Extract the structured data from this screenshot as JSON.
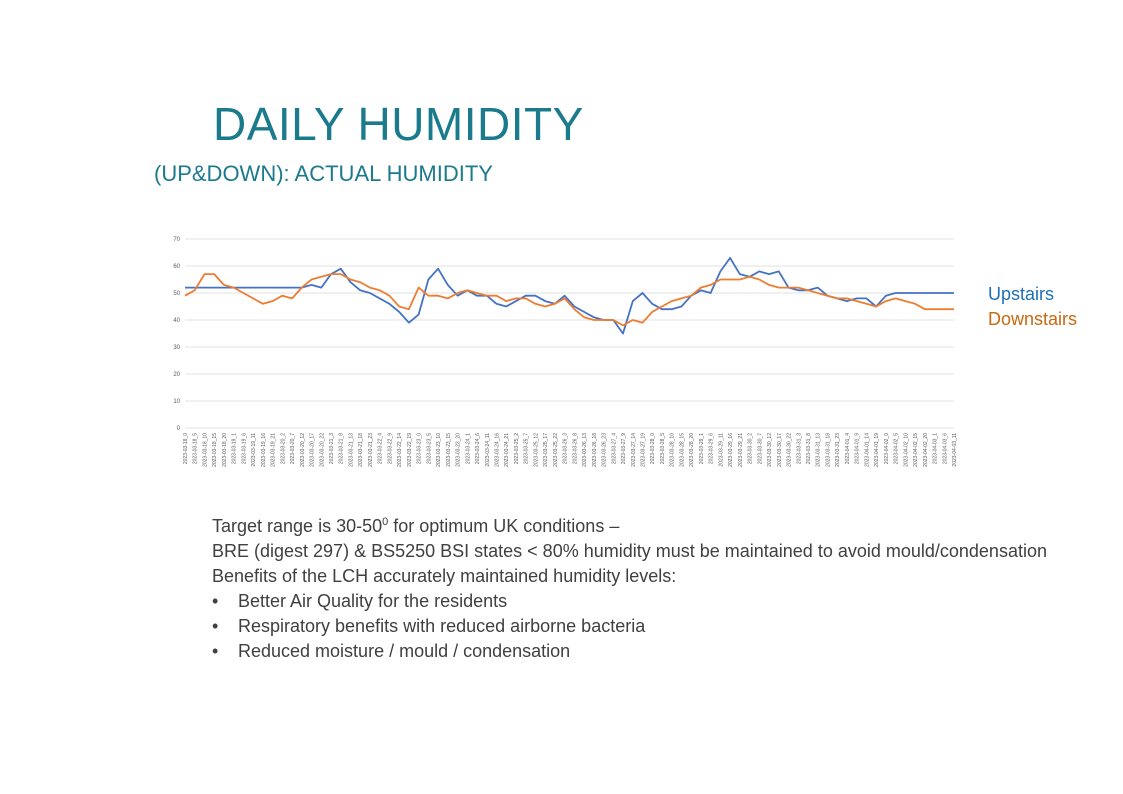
{
  "slide": {
    "title": "DAILY HUMIDITY",
    "subtitle": "(UP&DOWN): ACTUAL HUMIDITY"
  },
  "notes": {
    "line1_prefix": "Target range is 30-50",
    "line1_sup": "0",
    "line1_suffix": " for optimum UK conditions –",
    "line2": "BRE (digest 297) & BS5250 BSI states < 80% humidity must be maintained to avoid mould/condensation",
    "line3": "Benefits of the LCH accurately maintained humidity levels:",
    "bullet_symbol": "•",
    "bullets": [
      "Better Air Quality for the residents",
      "Respiratory benefits with reduced airborne bacteria",
      "Reduced moisture / mould / condensation"
    ]
  },
  "chart_data": {
    "type": "line",
    "title": "",
    "xlabel": "",
    "ylabel": "",
    "ylim": [
      0,
      70
    ],
    "yticks": [
      0,
      10,
      20,
      30,
      40,
      50,
      60,
      70
    ],
    "grid": true,
    "legend_position": "right",
    "categories": [
      "2023-03-18_0",
      "2023-03-18_5",
      "2023-03-18_10",
      "2023-03-18_15",
      "2023-03-18_20",
      "2023-03-19_1",
      "2023-03-19_6",
      "2023-03-19_11",
      "2023-03-19_16",
      "2023-03-19_21",
      "2023-03-20_2",
      "2023-03-20_7",
      "2023-03-20_12",
      "2023-03-20_17",
      "2023-03-20_22",
      "2023-03-21_3",
      "2023-03-21_8",
      "2023-03-21_13",
      "2023-03-21_18",
      "2023-03-21_23",
      "2023-03-22_4",
      "2023-03-22_9",
      "2023-03-22_14",
      "2023-03-22_19",
      "2023-03-23_0",
      "2023-03-23_5",
      "2023-03-23_10",
      "2023-03-23_15",
      "2023-03-23_20",
      "2023-03-24_1",
      "2023-03-24_6",
      "2023-03-24_11",
      "2023-03-24_16",
      "2023-03-24_21",
      "2023-03-25_2",
      "2023-03-25_7",
      "2023-03-25_12",
      "2023-03-25_17",
      "2023-03-25_22",
      "2023-03-26_3",
      "2023-03-26_8",
      "2023-03-26_13",
      "2023-03-26_18",
      "2023-03-26_23",
      "2023-03-27_4",
      "2023-03-27_9",
      "2023-03-27_14",
      "2023-03-27_19",
      "2023-03-28_0",
      "2023-03-28_5",
      "2023-03-28_10",
      "2023-03-28_15",
      "2023-03-28_20",
      "2023-03-29_1",
      "2023-03-29_6",
      "2023-03-29_11",
      "2023-03-29_16",
      "2023-03-29_21",
      "2023-03-30_2",
      "2023-03-30_7",
      "2023-03-30_12",
      "2023-03-30_17",
      "2023-03-30_22",
      "2023-03-31_3",
      "2023-03-31_8",
      "2023-03-31_13",
      "2023-03-31_18",
      "2023-03-31_23",
      "2023-04-01_4",
      "2023-04-01_9",
      "2023-04-01_14",
      "2023-04-01_19",
      "2023-04-02_0",
      "2023-04-02_5",
      "2023-04-02_10",
      "2023-04-02_15",
      "2023-04-02_20",
      "2023-04-03_1",
      "2023-04-03_6",
      "2023-04-03_11"
    ],
    "series": [
      {
        "name": "Upstairs",
        "color": "#4472c4",
        "values": [
          52,
          52,
          52,
          52,
          52,
          52,
          52,
          52,
          52,
          52,
          52,
          52,
          52,
          53,
          52,
          57,
          59,
          54,
          51,
          50,
          48,
          46,
          43,
          39,
          42,
          55,
          59,
          53,
          49,
          51,
          49,
          49,
          46,
          45,
          47,
          49,
          49,
          47,
          46,
          49,
          45,
          43,
          41,
          40,
          40,
          35,
          47,
          50,
          46,
          44,
          44,
          45,
          49,
          51,
          50,
          58,
          63,
          57,
          56,
          58,
          57,
          58,
          52,
          51,
          51,
          52,
          49,
          48,
          47,
          48,
          48,
          45,
          49,
          50,
          50,
          50,
          50,
          50,
          50,
          50
        ]
      },
      {
        "name": "Downstairs",
        "color": "#ed7d31",
        "values": [
          49,
          51,
          57,
          57,
          53,
          52,
          50,
          48,
          46,
          47,
          49,
          48,
          52,
          55,
          56,
          57,
          57,
          55,
          54,
          52,
          51,
          49,
          45,
          44,
          52,
          49,
          49,
          48,
          50,
          51,
          50,
          49,
          49,
          47,
          48,
          48,
          46,
          45,
          46,
          48,
          44,
          41,
          40,
          40,
          40,
          38,
          40,
          39,
          43,
          45,
          47,
          48,
          49,
          52,
          53,
          55,
          55,
          55,
          56,
          55,
          53,
          52,
          52,
          52,
          51,
          50,
          49,
          48,
          48,
          47,
          46,
          45,
          47,
          48,
          47,
          46,
          44,
          44,
          44,
          44
        ]
      }
    ]
  }
}
